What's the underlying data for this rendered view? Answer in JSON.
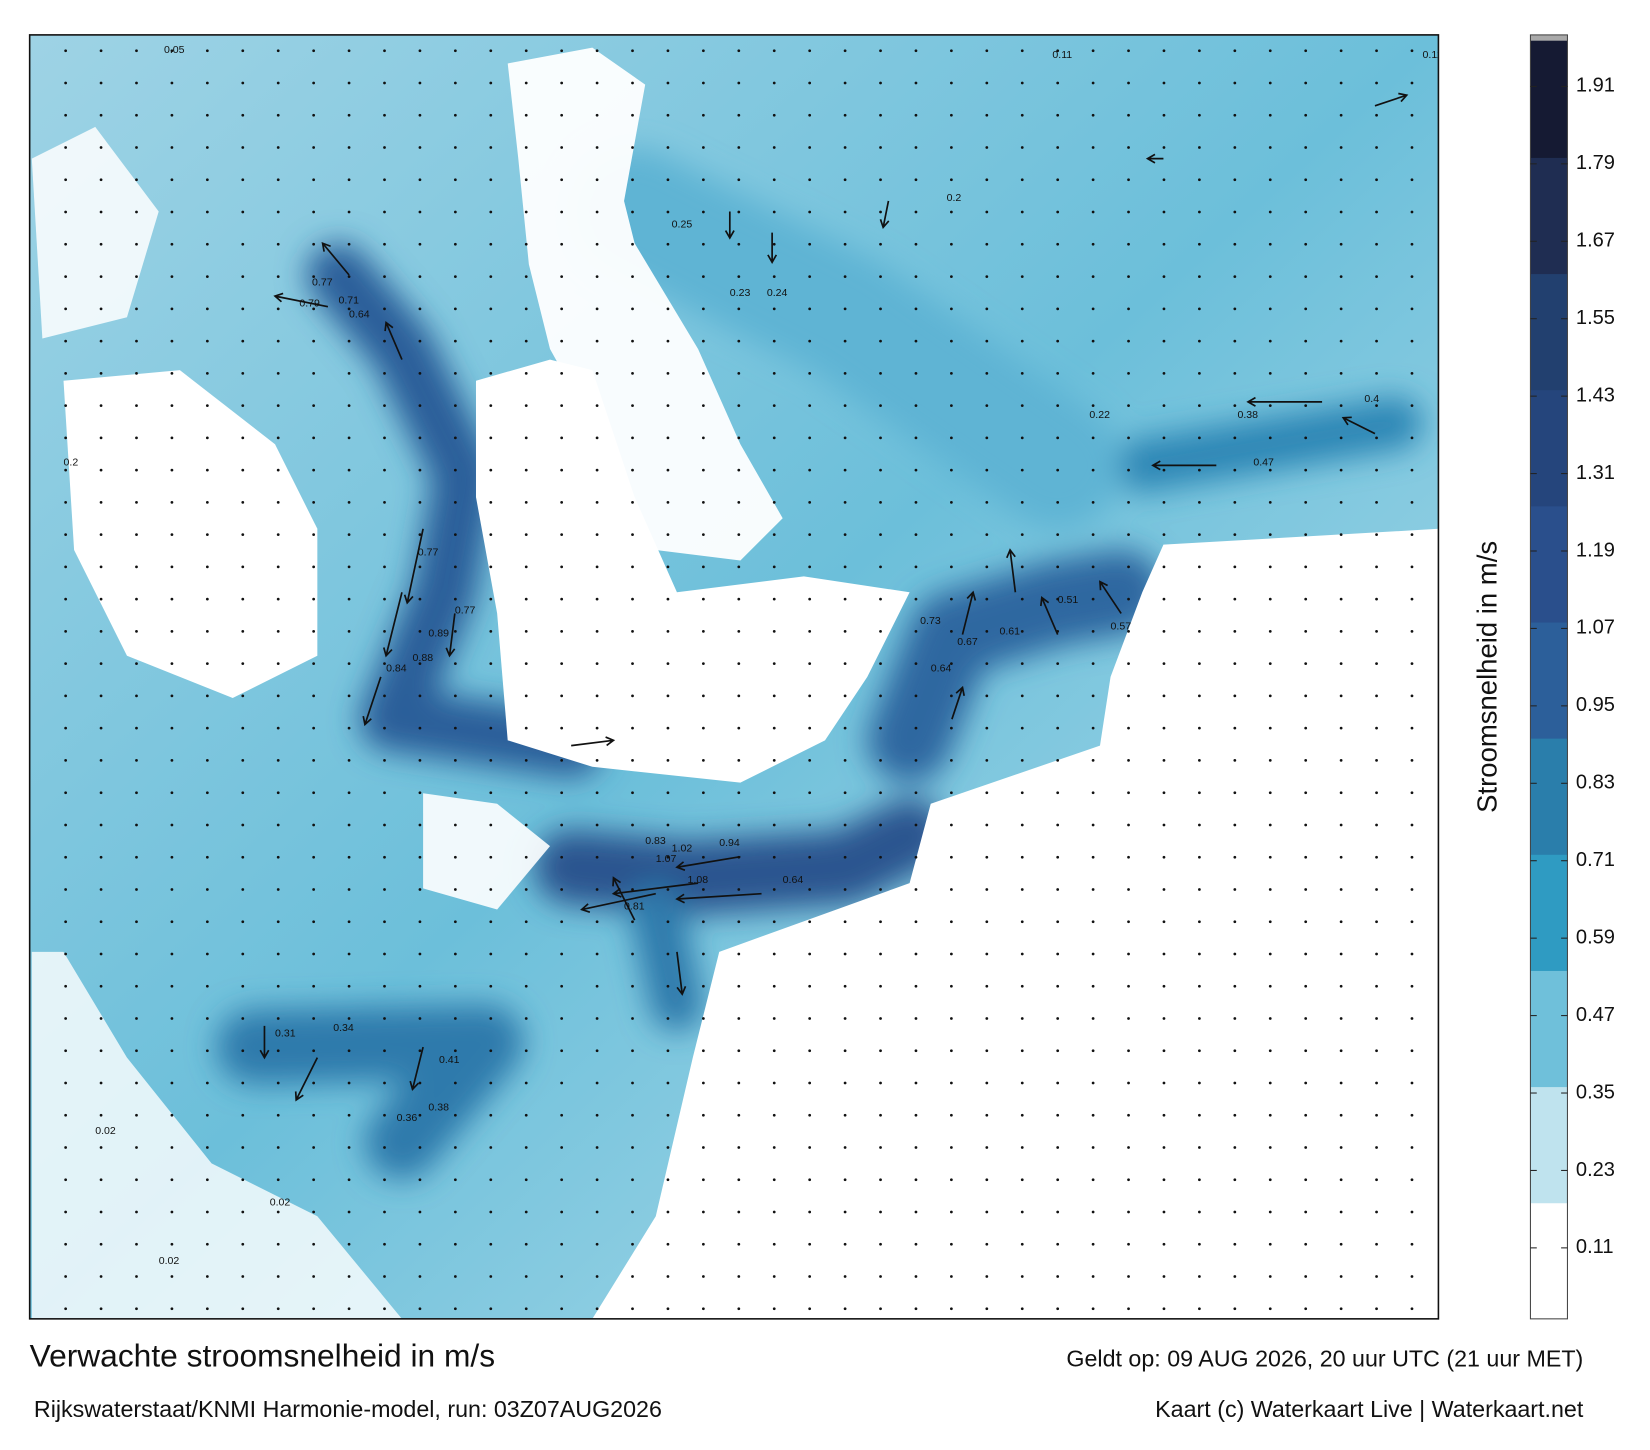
{
  "header": {
    "title": "Verwachte stroomsnelheid in m/s",
    "subtitle": "Rijkswaterstaat/KNMI Harmonie-model, run: 03Z07AUG2026",
    "valid_time": "Geldt op: 09 AUG 2026, 20 uur UTC (21 uur MET)",
    "credit": "Kaart (c) Waterkaart Live | Waterkaart.net"
  },
  "colorbar": {
    "label": "Stroomsnelheid in m/s",
    "lim": [
      0,
      1.98
    ],
    "ticks": [
      0.11,
      0.23,
      0.35,
      0.47,
      0.59,
      0.71,
      0.83,
      0.95,
      1.07,
      1.19,
      1.31,
      1.43,
      1.55,
      1.67,
      1.79,
      1.91
    ],
    "colors": [
      "#ffffff",
      "#bfe3ee",
      "#6fc0da",
      "#2f9bc2",
      "#2a7eab",
      "#2c5f9a",
      "#2a4f8c",
      "#25457c",
      "#22406f",
      "#1f2d52",
      "#151a33"
    ]
  },
  "map": {
    "labels": [
      0.77,
      0.71,
      0.79,
      0.64,
      0.89,
      0.88,
      0.84,
      0.77,
      0.77,
      0.83,
      1.02,
      1.08,
      1.07,
      0.94,
      0.81,
      0.64,
      0.67,
      0.64,
      0.73,
      0.61,
      0.51,
      0.57,
      0.4,
      0.47,
      0.38,
      0.22,
      0.2,
      0.23,
      0.24,
      0.25,
      0.34,
      0.41,
      0.38,
      0.31,
      0.36,
      0.02,
      0.02,
      0.02,
      0.11,
      0.11,
      0.05,
      0.2
    ]
  }
}
